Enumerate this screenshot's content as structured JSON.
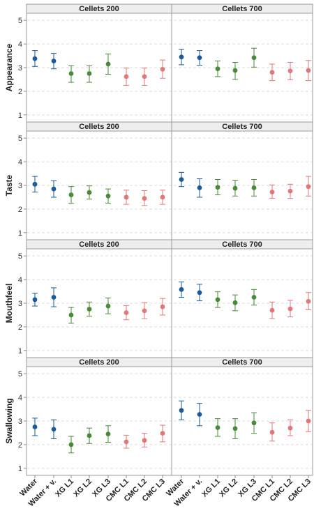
{
  "chart_data": {
    "type": "scatter",
    "subtitle_columns": [
      "Cellets 200",
      "Cellets 700"
    ],
    "categories": [
      "Water",
      "Water + v.",
      "XG L1",
      "XG L2",
      "XG L3",
      "CMC L1",
      "CMC L2",
      "CMC L3"
    ],
    "ylim": [
      0.7,
      5.3
    ],
    "yticks": [
      "1",
      "2",
      "3",
      "4",
      "5"
    ],
    "grid": true,
    "group_colors": {
      "Water": "#1a5a9a",
      "XG": "#4a8a3a",
      "CMC": "#e07878"
    },
    "category_groups": [
      "Water",
      "Water",
      "XG",
      "XG",
      "XG",
      "CMC",
      "CMC",
      "CMC"
    ],
    "rows": [
      {
        "ylabel": "Appearance",
        "panels": [
          {
            "title": "Cellets 200",
            "mean": [
              3.38,
              3.28,
              2.75,
              2.75,
              3.15,
              2.62,
              2.62,
              2.93
            ],
            "lower": [
              3.05,
              2.95,
              2.38,
              2.38,
              2.72,
              2.25,
              2.25,
              2.55
            ],
            "upper": [
              3.72,
              3.6,
              3.08,
              3.08,
              3.58,
              2.98,
              2.98,
              3.32
            ]
          },
          {
            "title": "Cellets 700",
            "mean": [
              3.45,
              3.42,
              2.95,
              2.88,
              3.42,
              2.8,
              2.86,
              2.88
            ],
            "lower": [
              3.12,
              3.1,
              2.62,
              2.5,
              3.02,
              2.45,
              2.48,
              2.45
            ],
            "upper": [
              3.78,
              3.72,
              3.28,
              3.22,
              3.82,
              3.15,
              3.22,
              3.3
            ]
          }
        ]
      },
      {
        "ylabel": "Taste",
        "panels": [
          {
            "title": "Cellets 200",
            "mean": [
              3.05,
              2.85,
              2.6,
              2.7,
              2.55,
              2.5,
              2.45,
              2.5
            ],
            "lower": [
              2.72,
              2.5,
              2.25,
              2.42,
              2.25,
              2.2,
              2.15,
              2.2
            ],
            "upper": [
              3.38,
              3.2,
              2.95,
              2.98,
              2.85,
              2.8,
              2.78,
              2.8
            ]
          },
          {
            "title": "Cellets 700",
            "mean": [
              3.25,
              2.9,
              2.92,
              2.88,
              2.9,
              2.72,
              2.76,
              2.95
            ],
            "lower": [
              2.95,
              2.5,
              2.6,
              2.55,
              2.55,
              2.45,
              2.45,
              2.55
            ],
            "upper": [
              3.55,
              3.28,
              3.25,
              3.22,
              3.25,
              3.02,
              3.05,
              3.38
            ]
          }
        ]
      },
      {
        "ylabel": "Mouthfeel",
        "panels": [
          {
            "title": "Cellets 200",
            "mean": [
              3.15,
              3.25,
              2.5,
              2.75,
              2.88,
              2.6,
              2.68,
              2.85
            ],
            "lower": [
              2.88,
              2.85,
              2.15,
              2.45,
              2.55,
              2.3,
              2.35,
              2.5
            ],
            "upper": [
              3.42,
              3.65,
              2.82,
              3.05,
              3.22,
              2.9,
              3.02,
              3.2
            ]
          },
          {
            "title": "Cellets 700",
            "mean": [
              3.58,
              3.45,
              3.15,
              3.02,
              3.25,
              2.7,
              2.76,
              3.08
            ],
            "lower": [
              3.25,
              3.1,
              2.82,
              2.68,
              2.92,
              2.35,
              2.42,
              2.72
            ],
            "upper": [
              3.9,
              3.8,
              3.48,
              3.35,
              3.58,
              3.05,
              3.12,
              3.45
            ]
          }
        ]
      },
      {
        "ylabel": "Swallowing",
        "panels": [
          {
            "title": "Cellets 200",
            "mean": [
              2.75,
              2.65,
              2.0,
              2.38,
              2.45,
              2.12,
              2.18,
              2.48
            ],
            "lower": [
              2.38,
              2.25,
              1.65,
              2.05,
              2.1,
              1.85,
              1.9,
              2.12
            ],
            "upper": [
              3.12,
              3.05,
              2.35,
              2.7,
              2.8,
              2.4,
              2.48,
              2.82
            ]
          },
          {
            "title": "Cellets 700",
            "mean": [
              3.45,
              3.28,
              2.72,
              2.68,
              2.92,
              2.52,
              2.7,
              3.0
            ],
            "lower": [
              3.05,
              2.8,
              2.35,
              2.25,
              2.48,
              2.15,
              2.38,
              2.55
            ],
            "upper": [
              3.85,
              3.75,
              3.1,
              3.1,
              3.35,
              2.92,
              3.05,
              3.45
            ]
          }
        ]
      }
    ]
  }
}
